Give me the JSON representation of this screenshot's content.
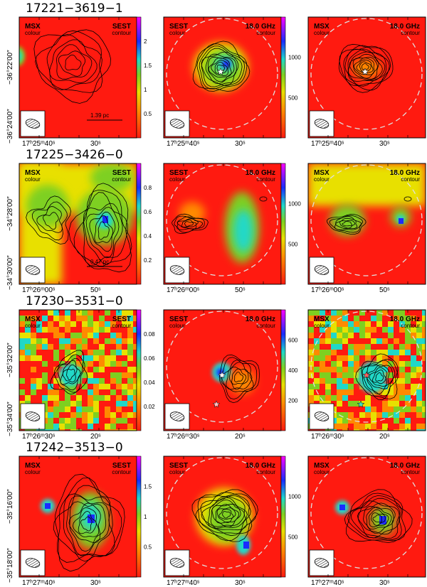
{
  "figure": {
    "rows": [
      {
        "title": "17221−3619−1",
        "dec_labels": [
          "−36°22′00″",
          "−36°24′00″"
        ],
        "ra_labels": [
          "17ʰ25ᵐ40ˢ",
          "30ˢ"
        ],
        "scale_label": "1.39 pc",
        "panels": [
          {
            "tl": "MSX",
            "tls": "colour",
            "tr": "SEST",
            "trs": "contour",
            "cbar": [
              "0.5",
              "1",
              "1.5",
              "2"
            ]
          },
          {
            "tl": "SEST",
            "tls": "colour",
            "tr": "18.0 GHz",
            "trs": "contour",
            "cbar": [
              "500",
              "1000"
            ]
          },
          {
            "tl": "MSX",
            "tls": "colour",
            "tr": "18.0 GHz",
            "trs": "contour",
            "cbar": []
          }
        ]
      },
      {
        "title": "17225−3426−0",
        "dec_labels": [
          "−34°28′00″",
          "−34°30′00″"
        ],
        "ra_labels": [
          "17ʰ26ᵐ00ˢ",
          "50ˢ"
        ],
        "scale_label": "0.47 pc",
        "panels": [
          {
            "tl": "MSX",
            "tls": "colour",
            "tr": "SEST",
            "trs": "contour",
            "cbar": [
              "0.2",
              "0.4",
              "0.6",
              "0.8"
            ]
          },
          {
            "tl": "SEST",
            "tls": "colour",
            "tr": "18.0 GHz",
            "trs": "contour",
            "cbar": [
              "500",
              "1000"
            ]
          },
          {
            "tl": "MSX",
            "tls": "colour",
            "tr": "18.0 GHz",
            "trs": "contour",
            "cbar": []
          }
        ]
      },
      {
        "title": "17230−3531−0",
        "dec_labels": [
          "−35°32′00″",
          "−35°34′00″"
        ],
        "ra_labels": [
          "17ʰ26ᵐ30ˢ",
          "20ˢ"
        ],
        "scale_label": "",
        "panels": [
          {
            "tl": "MSX",
            "tls": "colour",
            "tr": "SEST",
            "trs": "contour",
            "cbar": [
              "0.02",
              "0.04",
              "0.06",
              "0.08"
            ]
          },
          {
            "tl": "SEST",
            "tls": "colour",
            "tr": "18.0 GHz",
            "trs": "contour",
            "cbar": [
              "200",
              "400",
              "600"
            ]
          },
          {
            "tl": "MSX",
            "tls": "colour",
            "tr": "18.0 GHz",
            "trs": "contour",
            "cbar": []
          }
        ]
      },
      {
        "title": "17242−3513−0",
        "dec_labels": [
          "−35°16′00″",
          "−35°18′00″"
        ],
        "ra_labels": [
          "17ʰ27ᵐ40ˢ",
          "30ˢ"
        ],
        "scale_label": "",
        "panels": [
          {
            "tl": "MSX",
            "tls": "colour",
            "tr": "SEST",
            "trs": "contour",
            "cbar": [
              "0.5",
              "1",
              "1.5"
            ]
          },
          {
            "tl": "SEST",
            "tls": "colour",
            "tr": "18.0 GHz",
            "trs": "contour",
            "cbar": [
              "500",
              "1000"
            ]
          },
          {
            "tl": "MSX",
            "tls": "colour",
            "tr": "18.0 GHz",
            "trs": "contour",
            "cbar": []
          }
        ]
      }
    ],
    "colors": {
      "background": "#ff1a10",
      "orange": "#ff8a00",
      "yellow": "#e8e000",
      "green": "#7ed020",
      "cyan": "#20d8c8",
      "blue": "#1a2cff",
      "contour": "#000000",
      "beam_circle": "#e0e0e0"
    }
  }
}
